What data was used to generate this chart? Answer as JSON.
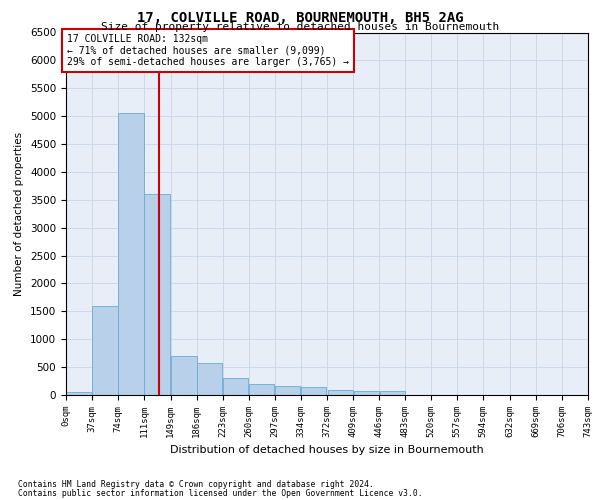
{
  "title": "17, COLVILLE ROAD, BOURNEMOUTH, BH5 2AG",
  "subtitle": "Size of property relative to detached houses in Bournemouth",
  "xlabel": "Distribution of detached houses by size in Bournemouth",
  "ylabel": "Number of detached properties",
  "footer_line1": "Contains HM Land Registry data © Crown copyright and database right 2024.",
  "footer_line2": "Contains public sector information licensed under the Open Government Licence v3.0.",
  "annotation_line1": "17 COLVILLE ROAD: 132sqm",
  "annotation_line2": "← 71% of detached houses are smaller (9,099)",
  "annotation_line3": "29% of semi-detached houses are larger (3,765) →",
  "bin_edges": [
    0,
    37,
    74,
    111,
    149,
    186,
    223,
    260,
    297,
    334,
    372,
    409,
    446,
    483,
    520,
    557,
    594,
    632,
    669,
    706,
    743
  ],
  "bin_labels": [
    "0sqm",
    "37sqm",
    "74sqm",
    "111sqm",
    "149sqm",
    "186sqm",
    "223sqm",
    "260sqm",
    "297sqm",
    "334sqm",
    "372sqm",
    "409sqm",
    "446sqm",
    "483sqm",
    "520sqm",
    "557sqm",
    "594sqm",
    "632sqm",
    "669sqm",
    "706sqm",
    "743sqm"
  ],
  "counts": [
    55,
    1600,
    5050,
    3600,
    700,
    580,
    310,
    200,
    170,
    140,
    95,
    65,
    65,
    0,
    0,
    0,
    0,
    0,
    0,
    0
  ],
  "bar_color": "#b8d0ea",
  "bar_edge_color": "#6aaad4",
  "grid_color": "#c8d4e8",
  "bg_color": "#e8eef8",
  "vline_color": "#cc0000",
  "vline_x": 132,
  "annotation_box_color": "#cc0000",
  "ylim": [
    0,
    6500
  ],
  "yticks": [
    0,
    500,
    1000,
    1500,
    2000,
    2500,
    3000,
    3500,
    4000,
    4500,
    5000,
    5500,
    6000,
    6500
  ]
}
